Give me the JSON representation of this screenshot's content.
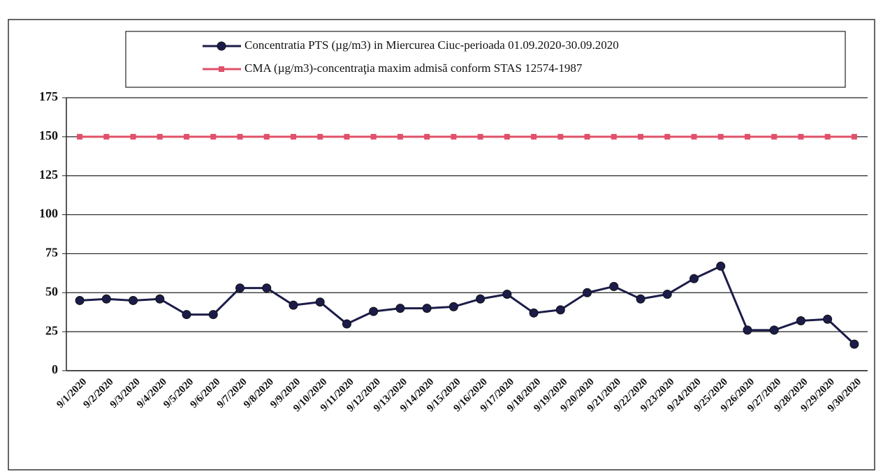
{
  "chart_data": {
    "type": "line",
    "categories": [
      "9/1/2020",
      "9/2/2020",
      "9/3/2020",
      "9/4/2020",
      "9/5/2020",
      "9/6/2020",
      "9/7/2020",
      "9/8/2020",
      "9/9/2020",
      "9/10/2020",
      "9/11/2020",
      "9/12/2020",
      "9/13/2020",
      "9/14/2020",
      "9/15/2020",
      "9/16/2020",
      "9/17/2020",
      "9/18/2020",
      "9/19/2020",
      "9/20/2020",
      "9/21/2020",
      "9/22/2020",
      "9/23/2020",
      "9/24/2020",
      "9/25/2020",
      "9/26/2020",
      "9/27/2020",
      "9/28/2020",
      "9/29/2020",
      "9/30/2020"
    ],
    "series": [
      {
        "name": "Concentratia PTS (µg/m3) in Miercurea Ciuc-perioada 01.09.2020-30.09.2020",
        "color": "#1c1c4a",
        "marker": "circle",
        "values": [
          45,
          46,
          45,
          46,
          36,
          36,
          53,
          53,
          42,
          44,
          30,
          38,
          40,
          40,
          41,
          46,
          49,
          37,
          39,
          50,
          54,
          46,
          49,
          59,
          67,
          26,
          26,
          32,
          33,
          17
        ]
      },
      {
        "name": "CMA (µg/m3)-concentraţia maxim admisă conform STAS 12574-1987",
        "color": "#e0506a",
        "marker": "square",
        "values": [
          150,
          150,
          150,
          150,
          150,
          150,
          150,
          150,
          150,
          150,
          150,
          150,
          150,
          150,
          150,
          150,
          150,
          150,
          150,
          150,
          150,
          150,
          150,
          150,
          150,
          150,
          150,
          150,
          150,
          150
        ]
      }
    ],
    "ylim": [
      0,
      175
    ],
    "yticks": [
      0,
      25,
      50,
      75,
      100,
      125,
      150,
      175
    ],
    "grid": true
  }
}
